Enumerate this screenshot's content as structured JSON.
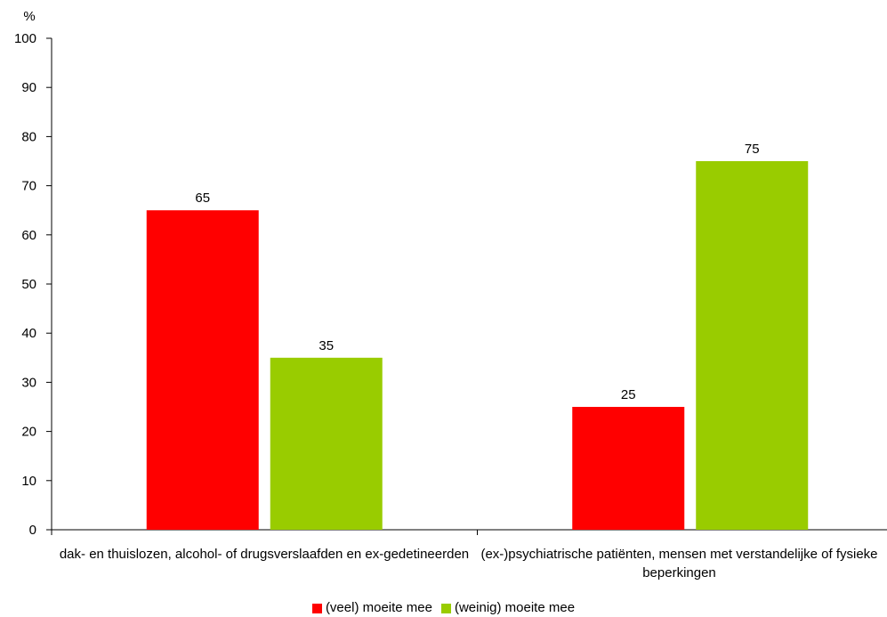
{
  "chart_data": {
    "type": "bar",
    "ylabel": "%",
    "ylim": [
      0,
      100
    ],
    "yticks": [
      "0",
      "10",
      "20",
      "30",
      "40",
      "50",
      "60",
      "70",
      "80",
      "90",
      "100"
    ],
    "categories": [
      "dak- en thuislozen, alcohol- of drugsverslaafden en ex-gedetineerden",
      "(ex-)psychiatrische patiënten, mensen met verstandelijke of fysieke beperkingen"
    ],
    "series": [
      {
        "name": "(veel) moeite mee",
        "color": "#ff0000",
        "values": [
          65,
          25
        ]
      },
      {
        "name": "(weinig) moeite mee",
        "color": "#99cc00",
        "values": [
          35,
          75
        ]
      }
    ],
    "grid": false,
    "legend_position": "bottom"
  }
}
